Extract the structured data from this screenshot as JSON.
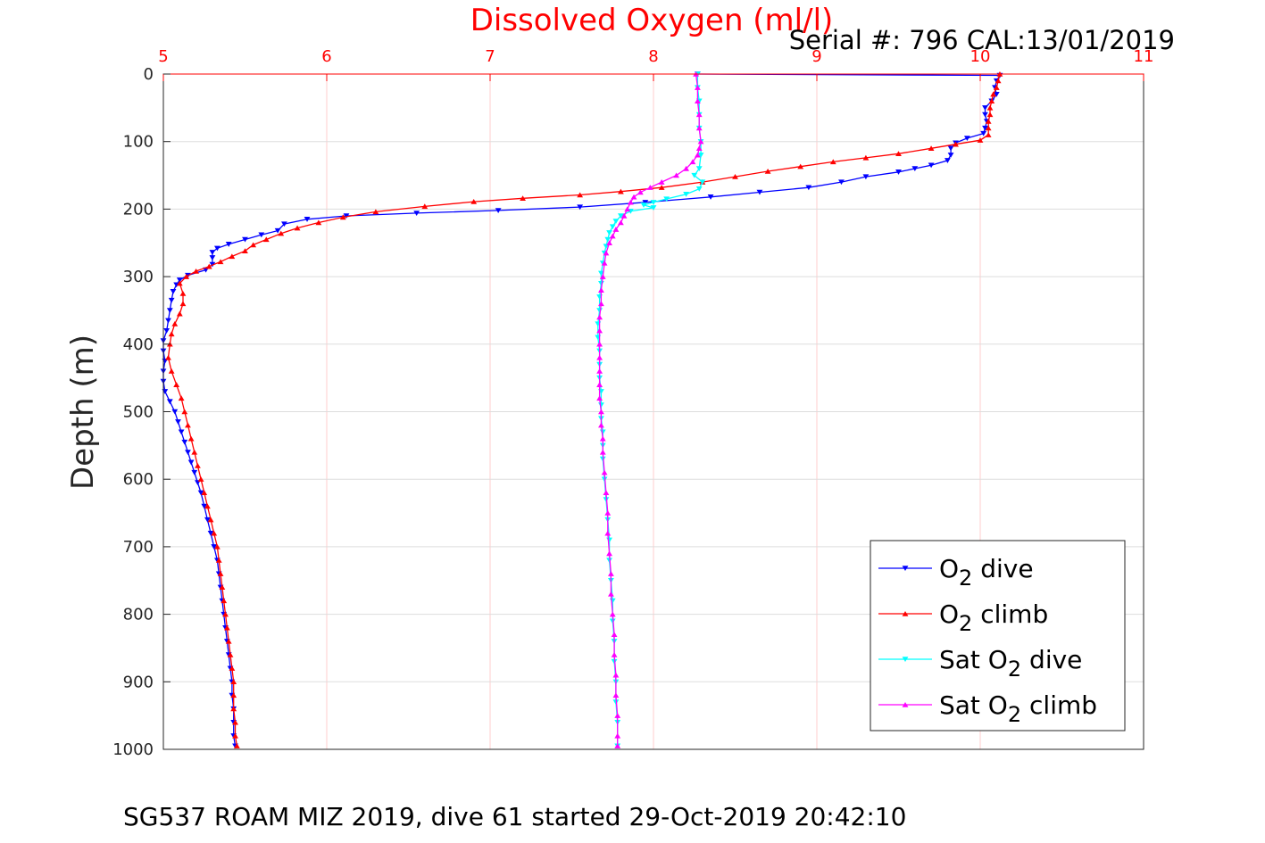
{
  "chart_data": {
    "type": "scatter",
    "title": "Dissolved Oxygen (ml/l)",
    "annotation": "Serial #: 796  CAL:13/01/2019",
    "ylabel": "Depth (m)",
    "footer": "SG537 ROAM MIZ 2019, dive 61 started 29-Oct-2019 20:42:10",
    "xlim": [
      5,
      11
    ],
    "ylim": [
      0,
      1000
    ],
    "y_reversed": true,
    "x_axis_location": "top",
    "x_ticks": [
      "5",
      "6",
      "7",
      "8",
      "9",
      "10",
      "11"
    ],
    "y_ticks": [
      "0",
      "100",
      "200",
      "300",
      "400",
      "500",
      "600",
      "700",
      "800",
      "900",
      "1000"
    ],
    "grid": true,
    "colors": {
      "x_axis": "#ff0000",
      "y_axis": "#262626",
      "grid_x": "#ffcccc",
      "grid_y": "#dddddd"
    },
    "legend": {
      "placement": "bottom-right",
      "entries": [
        {
          "text": "O",
          "sub": "2",
          "after": " dive"
        },
        {
          "text": "O",
          "sub": "2",
          "after": " climb"
        },
        {
          "text": "Sat O",
          "sub": "2",
          "after": " dive"
        },
        {
          "text": "Sat O",
          "sub": "2",
          "after": " climb"
        }
      ]
    },
    "series": [
      {
        "color": "#0000ff",
        "marker": "triangle-down",
        "points": [
          [
            8.27,
            0
          ],
          [
            10.12,
            2
          ],
          [
            10.1,
            10
          ],
          [
            10.09,
            20
          ],
          [
            10.1,
            30
          ],
          [
            10.07,
            40
          ],
          [
            10.03,
            50
          ],
          [
            10.03,
            60
          ],
          [
            10.04,
            70
          ],
          [
            10.03,
            80
          ],
          [
            10.02,
            88
          ],
          [
            9.92,
            95
          ],
          [
            9.85,
            102
          ],
          [
            9.82,
            110
          ],
          [
            9.82,
            120
          ],
          [
            9.8,
            128
          ],
          [
            9.7,
            135
          ],
          [
            9.6,
            140
          ],
          [
            9.5,
            145
          ],
          [
            9.3,
            152
          ],
          [
            9.15,
            160
          ],
          [
            8.95,
            168
          ],
          [
            8.65,
            175
          ],
          [
            8.35,
            182
          ],
          [
            7.95,
            190
          ],
          [
            7.55,
            197
          ],
          [
            7.05,
            202
          ],
          [
            6.55,
            206
          ],
          [
            6.12,
            210
          ],
          [
            5.88,
            215
          ],
          [
            5.74,
            222
          ],
          [
            5.7,
            232
          ],
          [
            5.6,
            238
          ],
          [
            5.5,
            245
          ],
          [
            5.4,
            252
          ],
          [
            5.33,
            258
          ],
          [
            5.3,
            264
          ],
          [
            5.3,
            272
          ],
          [
            5.3,
            282
          ],
          [
            5.26,
            290
          ],
          [
            5.15,
            298
          ],
          [
            5.1,
            305
          ],
          [
            5.08,
            312
          ],
          [
            5.06,
            322
          ],
          [
            5.05,
            335
          ],
          [
            5.04,
            350
          ],
          [
            5.03,
            365
          ],
          [
            5.02,
            380
          ],
          [
            5.0,
            395
          ],
          [
            5.0,
            410
          ],
          [
            5.01,
            425
          ],
          [
            5.0,
            440
          ],
          [
            5.0,
            455
          ],
          [
            5.01,
            470
          ],
          [
            5.04,
            485
          ],
          [
            5.07,
            500
          ],
          [
            5.09,
            515
          ],
          [
            5.11,
            530
          ],
          [
            5.13,
            545
          ],
          [
            5.15,
            560
          ],
          [
            5.17,
            575
          ],
          [
            5.19,
            590
          ],
          [
            5.21,
            605
          ],
          [
            5.23,
            620
          ],
          [
            5.25,
            640
          ],
          [
            5.27,
            660
          ],
          [
            5.29,
            680
          ],
          [
            5.31,
            700
          ],
          [
            5.33,
            720
          ],
          [
            5.34,
            740
          ],
          [
            5.35,
            760
          ],
          [
            5.36,
            780
          ],
          [
            5.37,
            800
          ],
          [
            5.38,
            820
          ],
          [
            5.39,
            840
          ],
          [
            5.4,
            860
          ],
          [
            5.41,
            880
          ],
          [
            5.42,
            900
          ],
          [
            5.42,
            920
          ],
          [
            5.43,
            940
          ],
          [
            5.43,
            960
          ],
          [
            5.43,
            980
          ],
          [
            5.44,
            995
          ]
        ]
      },
      {
        "color": "#ff0000",
        "marker": "triangle-up",
        "points": [
          [
            10.12,
            0
          ],
          [
            10.11,
            10
          ],
          [
            10.1,
            20
          ],
          [
            10.08,
            30
          ],
          [
            10.07,
            40
          ],
          [
            10.06,
            50
          ],
          [
            10.06,
            60
          ],
          [
            10.05,
            70
          ],
          [
            10.05,
            80
          ],
          [
            10.05,
            90
          ],
          [
            10.0,
            98
          ],
          [
            9.85,
            104
          ],
          [
            9.7,
            110
          ],
          [
            9.5,
            118
          ],
          [
            9.3,
            124
          ],
          [
            9.1,
            130
          ],
          [
            8.9,
            137
          ],
          [
            8.7,
            144
          ],
          [
            8.5,
            152
          ],
          [
            8.3,
            160
          ],
          [
            8.05,
            168
          ],
          [
            7.8,
            174
          ],
          [
            7.55,
            179
          ],
          [
            7.2,
            184
          ],
          [
            6.9,
            189
          ],
          [
            6.6,
            196
          ],
          [
            6.3,
            204
          ],
          [
            6.1,
            212
          ],
          [
            5.95,
            220
          ],
          [
            5.82,
            228
          ],
          [
            5.72,
            236
          ],
          [
            5.63,
            245
          ],
          [
            5.55,
            253
          ],
          [
            5.5,
            262
          ],
          [
            5.42,
            270
          ],
          [
            5.35,
            278
          ],
          [
            5.28,
            285
          ],
          [
            5.2,
            292
          ],
          [
            5.14,
            300
          ],
          [
            5.1,
            310
          ],
          [
            5.12,
            325
          ],
          [
            5.12,
            340
          ],
          [
            5.1,
            355
          ],
          [
            5.07,
            370
          ],
          [
            5.05,
            385
          ],
          [
            5.04,
            400
          ],
          [
            5.03,
            420
          ],
          [
            5.05,
            440
          ],
          [
            5.08,
            460
          ],
          [
            5.11,
            480
          ],
          [
            5.13,
            500
          ],
          [
            5.15,
            520
          ],
          [
            5.17,
            540
          ],
          [
            5.19,
            560
          ],
          [
            5.21,
            580
          ],
          [
            5.23,
            600
          ],
          [
            5.25,
            620
          ],
          [
            5.27,
            640
          ],
          [
            5.29,
            660
          ],
          [
            5.31,
            680
          ],
          [
            5.33,
            700
          ],
          [
            5.34,
            720
          ],
          [
            5.35,
            740
          ],
          [
            5.36,
            760
          ],
          [
            5.37,
            780
          ],
          [
            5.38,
            800
          ],
          [
            5.39,
            820
          ],
          [
            5.4,
            840
          ],
          [
            5.41,
            860
          ],
          [
            5.42,
            880
          ],
          [
            5.43,
            900
          ],
          [
            5.43,
            920
          ],
          [
            5.43,
            940
          ],
          [
            5.44,
            960
          ],
          [
            5.44,
            980
          ],
          [
            5.45,
            995
          ]
        ]
      },
      {
        "color": "#00ffff",
        "marker": "triangle-down",
        "points": [
          [
            8.27,
            0
          ],
          [
            8.27,
            20
          ],
          [
            8.28,
            40
          ],
          [
            8.28,
            60
          ],
          [
            8.28,
            80
          ],
          [
            8.29,
            100
          ],
          [
            8.29,
            120
          ],
          [
            8.28,
            140
          ],
          [
            8.25,
            150
          ],
          [
            8.3,
            160
          ],
          [
            8.28,
            170
          ],
          [
            8.2,
            178
          ],
          [
            8.08,
            185
          ],
          [
            8.0,
            190
          ],
          [
            7.94,
            194
          ],
          [
            8.0,
            198
          ],
          [
            7.86,
            203
          ],
          [
            7.8,
            210
          ],
          [
            7.77,
            218
          ],
          [
            7.75,
            226
          ],
          [
            7.73,
            235
          ],
          [
            7.72,
            245
          ],
          [
            7.71,
            255
          ],
          [
            7.7,
            265
          ],
          [
            7.69,
            280
          ],
          [
            7.68,
            295
          ],
          [
            7.68,
            310
          ],
          [
            7.67,
            330
          ],
          [
            7.67,
            350
          ],
          [
            7.66,
            370
          ],
          [
            7.66,
            390
          ],
          [
            7.67,
            410
          ],
          [
            7.67,
            430
          ],
          [
            7.67,
            450
          ],
          [
            7.68,
            470
          ],
          [
            7.68,
            490
          ],
          [
            7.68,
            510
          ],
          [
            7.69,
            530
          ],
          [
            7.69,
            550
          ],
          [
            7.69,
            570
          ],
          [
            7.7,
            600
          ],
          [
            7.71,
            630
          ],
          [
            7.72,
            660
          ],
          [
            7.73,
            690
          ],
          [
            7.73,
            720
          ],
          [
            7.74,
            750
          ],
          [
            7.75,
            780
          ],
          [
            7.75,
            810
          ],
          [
            7.76,
            840
          ],
          [
            7.76,
            870
          ],
          [
            7.77,
            900
          ],
          [
            7.77,
            930
          ],
          [
            7.78,
            960
          ],
          [
            7.78,
            995
          ]
        ]
      },
      {
        "color": "#ff00ff",
        "marker": "triangle-up",
        "points": [
          [
            8.26,
            0
          ],
          [
            8.27,
            20
          ],
          [
            8.27,
            40
          ],
          [
            8.28,
            60
          ],
          [
            8.28,
            80
          ],
          [
            8.29,
            100
          ],
          [
            8.28,
            110
          ],
          [
            8.27,
            120
          ],
          [
            8.24,
            130
          ],
          [
            8.2,
            140
          ],
          [
            8.14,
            150
          ],
          [
            8.05,
            160
          ],
          [
            7.98,
            168
          ],
          [
            7.92,
            175
          ],
          [
            7.88,
            182
          ],
          [
            7.86,
            190
          ],
          [
            7.84,
            200
          ],
          [
            7.82,
            210
          ],
          [
            7.8,
            220
          ],
          [
            7.77,
            230
          ],
          [
            7.75,
            240
          ],
          [
            7.73,
            250
          ],
          [
            7.71,
            265
          ],
          [
            7.7,
            280
          ],
          [
            7.69,
            300
          ],
          [
            7.68,
            320
          ],
          [
            7.68,
            340
          ],
          [
            7.67,
            360
          ],
          [
            7.67,
            380
          ],
          [
            7.67,
            400
          ],
          [
            7.67,
            420
          ],
          [
            7.67,
            440
          ],
          [
            7.67,
            460
          ],
          [
            7.67,
            480
          ],
          [
            7.68,
            500
          ],
          [
            7.68,
            520
          ],
          [
            7.69,
            540
          ],
          [
            7.69,
            560
          ],
          [
            7.7,
            590
          ],
          [
            7.71,
            620
          ],
          [
            7.72,
            650
          ],
          [
            7.72,
            680
          ],
          [
            7.73,
            710
          ],
          [
            7.74,
            740
          ],
          [
            7.74,
            770
          ],
          [
            7.75,
            800
          ],
          [
            7.76,
            830
          ],
          [
            7.76,
            860
          ],
          [
            7.77,
            890
          ],
          [
            7.77,
            920
          ],
          [
            7.78,
            950
          ],
          [
            7.78,
            980
          ],
          [
            7.78,
            995
          ]
        ]
      }
    ]
  }
}
